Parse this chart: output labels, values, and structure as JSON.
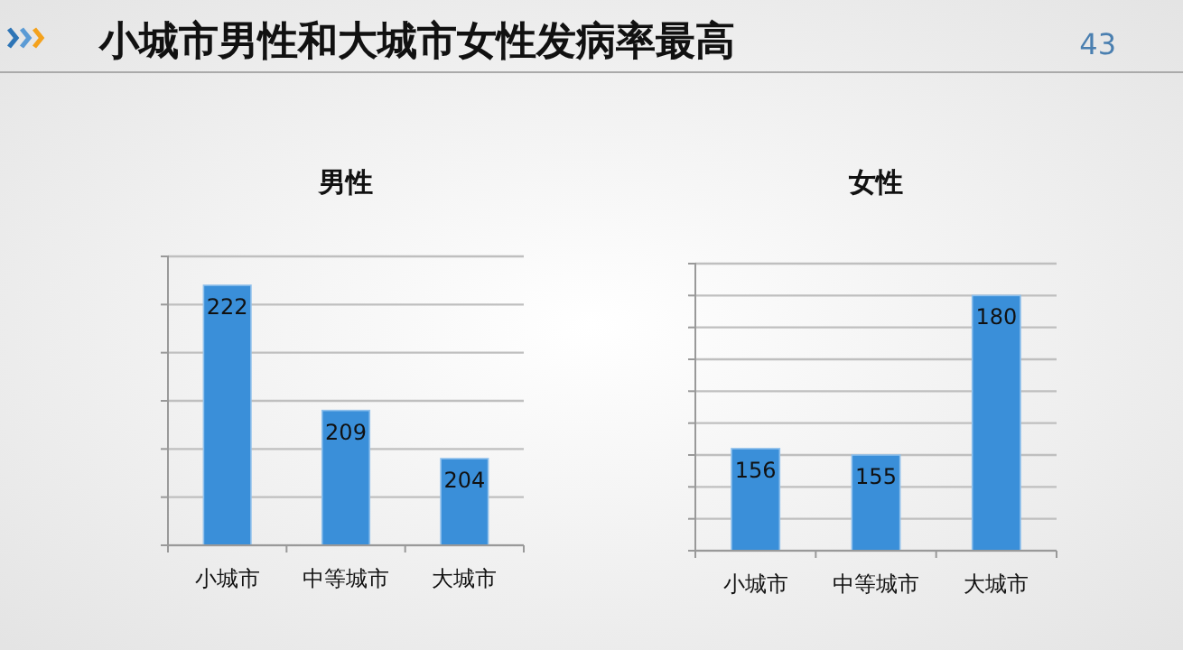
{
  "chart_data": [
    {
      "type": "other",
      "title": "小城市男性和大城市女性发病率最高",
      "annotations": [
        "43"
      ]
    },
    {
      "type": "bar",
      "title": "男性",
      "categories": [
        "小城市",
        "中等城市",
        "大城市"
      ],
      "values": [
        222,
        209,
        204
      ],
      "color": "#3a8fd9",
      "ylim": [
        195,
        225
      ],
      "yticks": [
        {
          "value": 195,
          "label": null
        },
        {
          "value": 200,
          "label": null
        },
        {
          "value": 205,
          "label": null
        },
        {
          "value": 210,
          "label": null
        },
        {
          "value": 215,
          "label": null
        },
        {
          "value": 220,
          "label": null
        },
        {
          "value": 225,
          "label": null
        }
      ],
      "grid": "y",
      "data_labels": true,
      "tick_labels": "x"
    },
    {
      "type": "bar",
      "title": "女性",
      "categories": [
        "小城市",
        "中等城市",
        "大城市"
      ],
      "values": [
        156,
        155,
        180
      ],
      "color": "#3a8fd9",
      "ylim": [
        140,
        185
      ],
      "yticks": [
        {
          "value": 140,
          "label": null
        },
        {
          "value": 145,
          "label": null
        },
        {
          "value": 150,
          "label": null
        },
        {
          "value": 155,
          "label": null
        },
        {
          "value": 160,
          "label": null
        },
        {
          "value": 165,
          "label": null
        },
        {
          "value": 170,
          "label": null
        },
        {
          "value": 175,
          "label": null
        },
        {
          "value": 180,
          "label": null
        },
        {
          "value": 185,
          "label": null
        }
      ],
      "grid": "y",
      "data_labels": true,
      "tick_labels": "x"
    }
  ]
}
